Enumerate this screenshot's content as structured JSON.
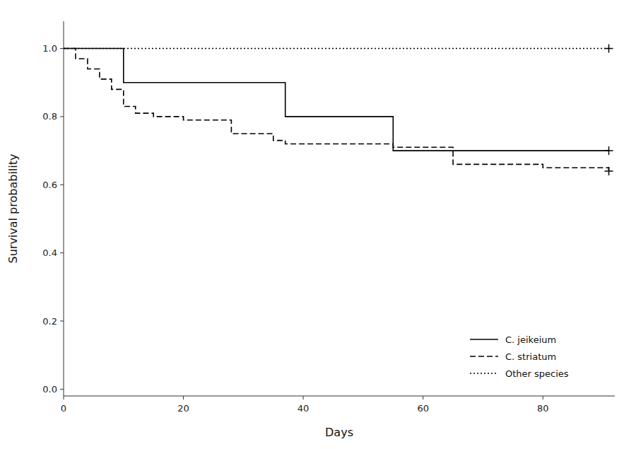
{
  "chart_data": {
    "type": "step",
    "xlabel": "Days",
    "ylabel": "Survival probability",
    "xlim": [
      0,
      92
    ],
    "ylim": [
      -0.02,
      1.08
    ],
    "xticks": [
      0,
      20,
      40,
      60,
      80
    ],
    "yticks": [
      {
        "value": 0,
        "label": "0.0"
      },
      0.2,
      0.4,
      0.6,
      0.8,
      {
        "value": 1.0,
        "label": "1.0"
      }
    ],
    "grid": false,
    "legend": "lower right",
    "series": [
      {
        "name": "C. jeikeium",
        "color": "#000000",
        "line_style": "solid",
        "marker": "plus",
        "x": [
          0,
          10,
          37,
          55,
          91
        ],
        "values": [
          1.0,
          0.9,
          0.8,
          0.7,
          0.7
        ],
        "censor_x": [
          91
        ],
        "censor_values": [
          0.7
        ]
      },
      {
        "name": "C. striatum",
        "color": "#000000",
        "line_style": "dashed",
        "marker": "plus",
        "x": [
          0,
          2,
          4,
          6,
          8,
          10,
          12,
          15,
          20,
          28,
          35,
          37,
          55,
          65,
          80,
          91
        ],
        "values": [
          1.0,
          0.97,
          0.94,
          0.91,
          0.88,
          0.83,
          0.81,
          0.8,
          0.79,
          0.75,
          0.73,
          0.72,
          0.71,
          0.66,
          0.65,
          0.64
        ],
        "censor_x": [
          91
        ],
        "censor_values": [
          0.64
        ]
      },
      {
        "name": "Other species",
        "color": "#000000",
        "line_style": "dotted",
        "marker": "plus",
        "x": [
          0,
          91
        ],
        "values": [
          1.0,
          1.0
        ],
        "censor_x": [
          91
        ],
        "censor_values": [
          1.0
        ]
      }
    ]
  }
}
